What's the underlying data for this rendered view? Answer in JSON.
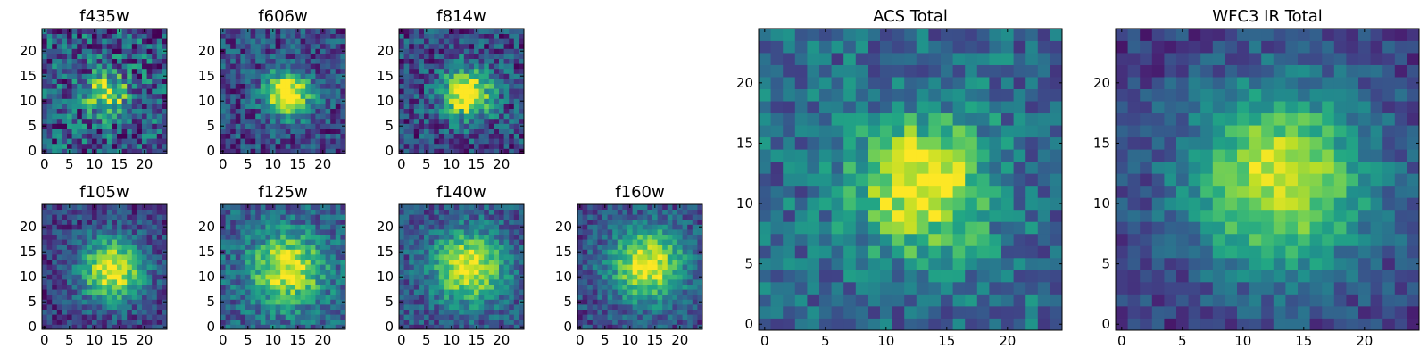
{
  "figure": {
    "panel_count": 9,
    "colormap": "viridis"
  },
  "chart_data": [
    {
      "type": "heatmap",
      "title": "f435w",
      "x_ticks": [
        "0",
        "5",
        "10",
        "15",
        "20"
      ],
      "y_ticks": [
        "0",
        "5",
        "10",
        "15",
        "20"
      ],
      "xlim": [
        -0.5,
        24.5
      ],
      "ylim": [
        -0.5,
        24.5
      ],
      "grid_size": [
        25,
        25
      ],
      "center": [
        12.5,
        11.5
      ],
      "peak": 0.62,
      "sigma": 3.0,
      "noise": 0.33,
      "floor": 0.28,
      "seed": 3
    },
    {
      "type": "heatmap",
      "title": "f606w",
      "x_ticks": [
        "0",
        "5",
        "10",
        "15",
        "20"
      ],
      "y_ticks": [
        "0",
        "5",
        "10",
        "15",
        "20"
      ],
      "xlim": [
        -0.5,
        24.5
      ],
      "ylim": [
        -0.5,
        24.5
      ],
      "grid_size": [
        25,
        25
      ],
      "center": [
        13.0,
        11.5
      ],
      "peak": 0.9,
      "sigma": 3.2,
      "noise": 0.22,
      "floor": 0.22,
      "seed": 11
    },
    {
      "type": "heatmap",
      "title": "f814w",
      "x_ticks": [
        "0",
        "5",
        "10",
        "15",
        "20"
      ],
      "y_ticks": [
        "0",
        "5",
        "10",
        "15",
        "20"
      ],
      "xlim": [
        -0.5,
        24.5
      ],
      "ylim": [
        -0.5,
        24.5
      ],
      "grid_size": [
        25,
        25
      ],
      "center": [
        13.0,
        11.5
      ],
      "peak": 0.85,
      "sigma": 3.6,
      "noise": 0.24,
      "floor": 0.22,
      "seed": 17
    },
    {
      "type": "heatmap",
      "title": "f105w",
      "x_ticks": [
        "0",
        "5",
        "10",
        "15",
        "20"
      ],
      "y_ticks": [
        "0",
        "5",
        "10",
        "15",
        "20"
      ],
      "xlim": [
        -0.5,
        24.5
      ],
      "ylim": [
        -0.5,
        24.5
      ],
      "grid_size": [
        25,
        25
      ],
      "center": [
        13.5,
        11.5
      ],
      "peak": 0.82,
      "sigma": 4.6,
      "noise": 0.18,
      "floor": 0.18,
      "seed": 23
    },
    {
      "type": "heatmap",
      "title": "f125w",
      "x_ticks": [
        "0",
        "5",
        "10",
        "15",
        "20"
      ],
      "y_ticks": [
        "0",
        "5",
        "10",
        "15",
        "20"
      ],
      "xlim": [
        -0.5,
        24.5
      ],
      "ylim": [
        -0.5,
        24.5
      ],
      "grid_size": [
        25,
        25
      ],
      "center": [
        13.0,
        11.5
      ],
      "peak": 0.7,
      "sigma": 5.0,
      "noise": 0.2,
      "floor": 0.3,
      "seed": 29
    },
    {
      "type": "heatmap",
      "title": "f140w",
      "x_ticks": [
        "0",
        "5",
        "10",
        "15",
        "20"
      ],
      "y_ticks": [
        "0",
        "5",
        "10",
        "15",
        "20"
      ],
      "xlim": [
        -0.5,
        24.5
      ],
      "ylim": [
        -0.5,
        24.5
      ],
      "grid_size": [
        25,
        25
      ],
      "center": [
        13.5,
        12.0
      ],
      "peak": 0.75,
      "sigma": 5.0,
      "noise": 0.18,
      "floor": 0.25,
      "seed": 37
    },
    {
      "type": "heatmap",
      "title": "f160w",
      "x_ticks": [
        "0",
        "5",
        "10",
        "15",
        "20"
      ],
      "y_ticks": [
        "0",
        "5",
        "10",
        "15",
        "20"
      ],
      "xlim": [
        -0.5,
        24.5
      ],
      "ylim": [
        -0.5,
        24.5
      ],
      "grid_size": [
        25,
        25
      ],
      "center": [
        13.5,
        12.5
      ],
      "peak": 0.78,
      "sigma": 5.2,
      "noise": 0.17,
      "floor": 0.22,
      "seed": 41
    },
    {
      "type": "heatmap",
      "title": "ACS Total",
      "x_ticks": [
        "0",
        "5",
        "10",
        "15",
        "20"
      ],
      "y_ticks": [
        "0",
        "5",
        "10",
        "15",
        "20"
      ],
      "xlim": [
        -0.5,
        24.5
      ],
      "ylim": [
        -0.5,
        24.5
      ],
      "grid_size": [
        25,
        25
      ],
      "center": [
        13.0,
        11.5
      ],
      "peak": 0.7,
      "sigma": 3.8,
      "noise": 0.2,
      "floor": 0.35,
      "seed": 53
    },
    {
      "type": "heatmap",
      "title": "WFC3 IR Total",
      "x_ticks": [
        "0",
        "5",
        "10",
        "15",
        "20"
      ],
      "y_ticks": [
        "0",
        "5",
        "10",
        "15",
        "20"
      ],
      "xlim": [
        -0.5,
        24.5
      ],
      "ylim": [
        -0.5,
        24.5
      ],
      "grid_size": [
        25,
        25
      ],
      "center": [
        13.0,
        12.0
      ],
      "peak": 0.75,
      "sigma": 5.5,
      "noise": 0.14,
      "floor": 0.18,
      "seed": 61
    }
  ]
}
